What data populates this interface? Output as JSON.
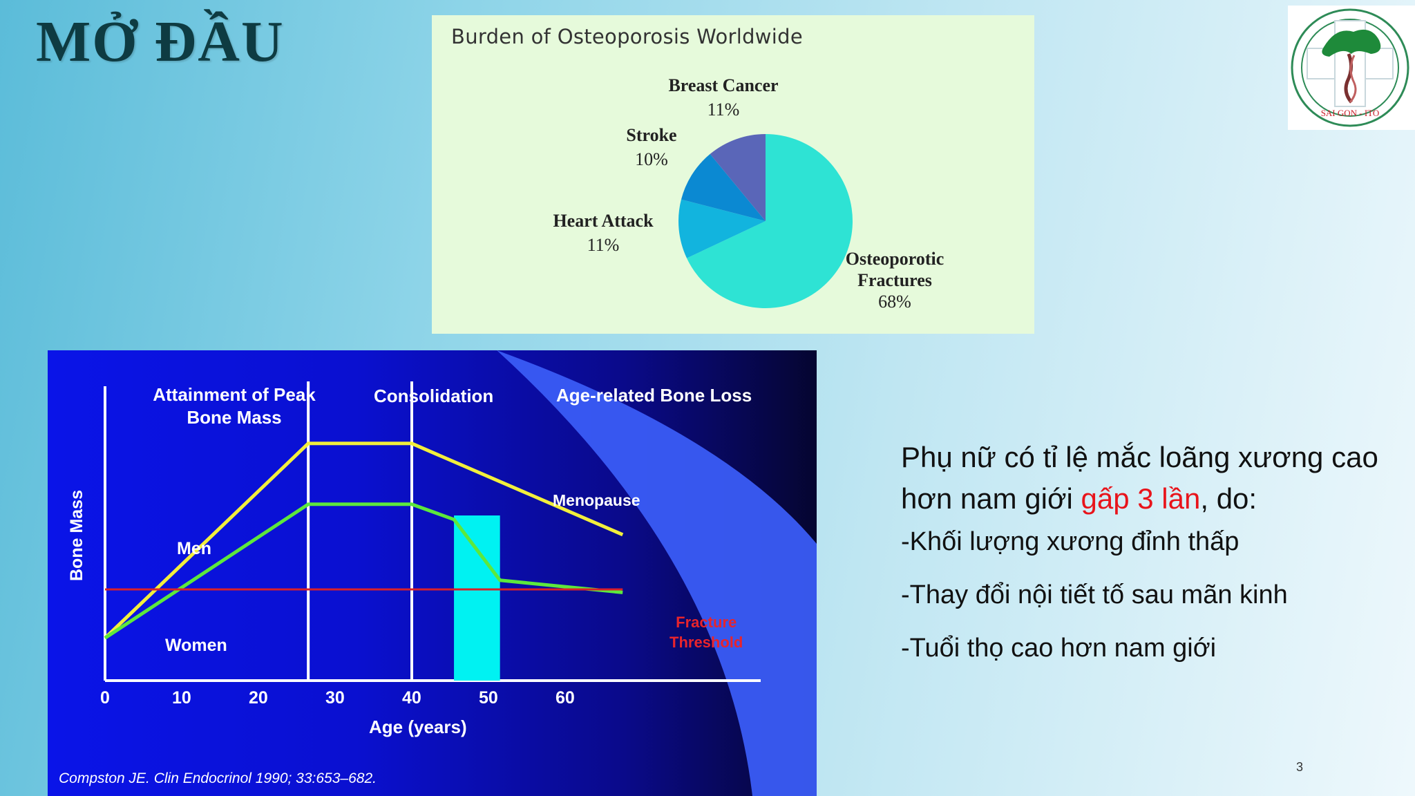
{
  "slide": {
    "title": "MỞ ĐẦU",
    "number": "3",
    "logo_text": "SAI GON - ITO"
  },
  "pie_chart": {
    "title": "Burden of Osteoporosis Worldwide",
    "labels": {
      "breast_cancer": {
        "name": "Breast Cancer",
        "pct": "11%"
      },
      "stroke": {
        "name": "Stroke",
        "pct": "10%"
      },
      "heart_attack": {
        "name": "Heart Attack",
        "pct": "11%"
      },
      "fractures_line1": "Osteoporotic",
      "fractures_line2": "Fractures",
      "fractures_pct": "68%"
    }
  },
  "bone_chart": {
    "phases": {
      "peak_line1": "Attainment of Peak",
      "peak_line2": "Bone Mass",
      "consolidation": "Consolidation",
      "loss": "Age-related Bone Loss"
    },
    "ylabel": "Bone Mass",
    "xlabel": "Age (years)",
    "xticks": [
      "0",
      "10",
      "20",
      "30",
      "40",
      "50",
      "60"
    ],
    "labels": {
      "men": "Men",
      "women": "Women",
      "menopause": "Menopause",
      "threshold_line1": "Fracture",
      "threshold_line2": "Threshold"
    },
    "citation": "Compston JE. Clin Endocrinol 1990; 33:653–682."
  },
  "chart_data": [
    {
      "type": "pie",
      "title": "Burden of Osteoporosis Worldwide",
      "categories": [
        "Osteoporotic Fractures",
        "Heart Attack",
        "Stroke",
        "Breast Cancer"
      ],
      "values": [
        68,
        11,
        10,
        11
      ],
      "colors": [
        "#2ee3d4",
        "#12b4de",
        "#0b89d2",
        "#5a66b8"
      ]
    },
    {
      "type": "line",
      "xlabel": "Age (years)",
      "ylabel": "Bone Mass",
      "xlim": [
        0,
        65
      ],
      "series": [
        {
          "name": "Men",
          "x": [
            0,
            26.5,
            40,
            67.5
          ],
          "y": [
            1.4,
            7.8,
            7.8,
            4.8
          ],
          "color": "#f2ef3c"
        },
        {
          "name": "Women",
          "x": [
            0,
            26.5,
            40,
            45.5,
            51.5,
            67.5
          ],
          "y": [
            1.4,
            5.8,
            5.8,
            5.3,
            3.3,
            2.9
          ],
          "color": "#5de83c"
        },
        {
          "name": "Fracture Threshold",
          "x": [
            0,
            67.5
          ],
          "y": [
            3.0,
            3.0
          ],
          "color": "#d8202a"
        }
      ],
      "phase_boundaries": [
        26.5,
        40
      ],
      "menopause_range": [
        45.5,
        51.5
      ]
    }
  ],
  "text_panel": {
    "lead_part1": "Phụ nữ có tỉ lệ mắc loãng xương cao hơn nam giới ",
    "lead_highlight": "gấp 3 lần",
    "lead_part2": ", do:",
    "bullets": [
      "-Khối lượng xương đỉnh thấp",
      "-Thay đổi nội tiết tố sau mãn kinh",
      "-Tuổi thọ cao hơn nam giới"
    ],
    "highlight_color": "#e8141b"
  }
}
